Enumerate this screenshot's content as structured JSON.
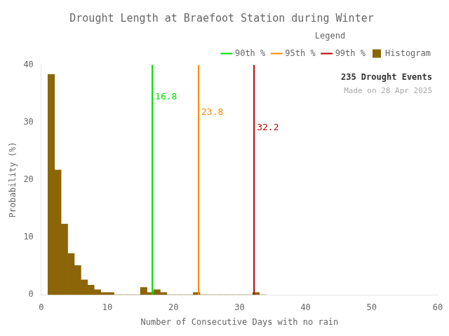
{
  "chart_data": {
    "type": "histogram",
    "title": "Drought Length at Braefoot Station during Winter",
    "xlabel": "Number of Consecutive Days with no rain",
    "ylabel": "Probability (%)",
    "xlim": [
      0,
      60
    ],
    "ylim": [
      0,
      40
    ],
    "xticks": [
      0,
      10,
      20,
      30,
      40,
      50,
      60
    ],
    "yticks": [
      0,
      10,
      20,
      30,
      40
    ],
    "bins": [
      1,
      2,
      3,
      4,
      5,
      6,
      7,
      8,
      9,
      10,
      11,
      12,
      13,
      14,
      15,
      16,
      17,
      18,
      19,
      20,
      21,
      22,
      23,
      24,
      25,
      26,
      27,
      28,
      29,
      30,
      31,
      32,
      33,
      34
    ],
    "series": [
      {
        "name": "Histogram",
        "color": "#8B6508",
        "values": [
          38.3,
          21.7,
          12.3,
          7.2,
          5.1,
          2.6,
          1.7,
          0.9,
          0.4,
          0.4,
          0.0,
          0.0,
          0.0,
          0.0,
          1.3,
          0.4,
          0.9,
          0.4,
          0.0,
          0.0,
          0.0,
          0.0,
          0.4,
          0.0,
          0.0,
          0.0,
          0.0,
          0.0,
          0.0,
          0.0,
          0.0,
          0.4,
          0.0
        ]
      }
    ],
    "lines": [
      {
        "name": "90th %",
        "x": 16.8,
        "label": "16.8",
        "color": "#00DD00"
      },
      {
        "name": "95th %",
        "x": 23.8,
        "label": "23.8",
        "color": "#FF8800"
      },
      {
        "name": "99th %",
        "x": 32.2,
        "label": "32.2",
        "color": "#BB0000"
      }
    ],
    "legend": "upper right",
    "legend_title": "Legend",
    "annotations": [
      {
        "text": "235 Drought Events"
      },
      {
        "text": "Made on 28 Apr 2025",
        "color": "#AAAAAA"
      }
    ],
    "grid": false
  }
}
